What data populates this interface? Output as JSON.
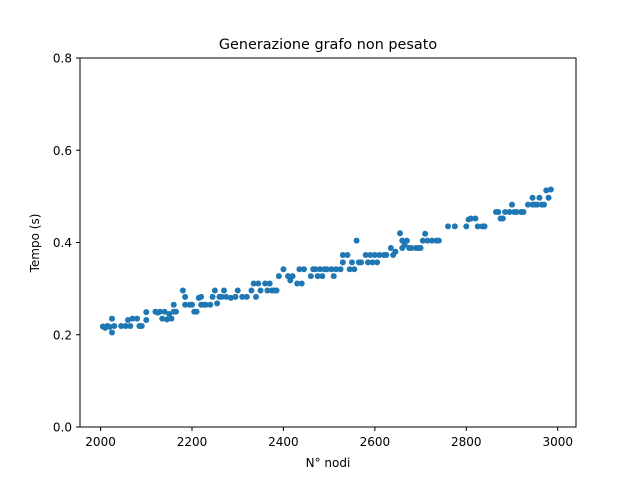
{
  "chart_data": {
    "type": "scatter",
    "title": "Generazione grafo non pesato",
    "xlabel": "N° nodi",
    "ylabel": "Tempo (s)",
    "xlim": [
      1955,
      3040
    ],
    "ylim": [
      0,
      0.8
    ],
    "x_ticks": [
      2000,
      2200,
      2400,
      2600,
      2800,
      3000
    ],
    "y_ticks": [
      0.0,
      0.2,
      0.4,
      0.6,
      0.8
    ],
    "x_tick_labels": [
      "2000",
      "2200",
      "2400",
      "2600",
      "2800",
      "3000"
    ],
    "y_tick_labels": [
      "0.0",
      "0.2",
      "0.4",
      "0.6",
      "0.8"
    ],
    "grid": false,
    "marker_color": "#1f77b4",
    "series": [
      {
        "points": [
          [
            2005,
            0.218
          ],
          [
            2010,
            0.215
          ],
          [
            2015,
            0.219
          ],
          [
            2020,
            0.217
          ],
          [
            2025,
            0.235
          ],
          [
            2025,
            0.205
          ],
          [
            2030,
            0.219
          ],
          [
            2045,
            0.219
          ],
          [
            2055,
            0.219
          ],
          [
            2060,
            0.232
          ],
          [
            2065,
            0.219
          ],
          [
            2070,
            0.235
          ],
          [
            2080,
            0.235
          ],
          [
            2085,
            0.219
          ],
          [
            2090,
            0.219
          ],
          [
            2100,
            0.232
          ],
          [
            2100,
            0.249
          ],
          [
            2120,
            0.25
          ],
          [
            2125,
            0.248
          ],
          [
            2130,
            0.25
          ],
          [
            2135,
            0.235
          ],
          [
            2140,
            0.25
          ],
          [
            2145,
            0.233
          ],
          [
            2150,
            0.245
          ],
          [
            2155,
            0.235
          ],
          [
            2160,
            0.25
          ],
          [
            2160,
            0.265
          ],
          [
            2165,
            0.25
          ],
          [
            2180,
            0.296
          ],
          [
            2185,
            0.282
          ],
          [
            2185,
            0.265
          ],
          [
            2195,
            0.265
          ],
          [
            2200,
            0.265
          ],
          [
            2205,
            0.25
          ],
          [
            2210,
            0.25
          ],
          [
            2215,
            0.28
          ],
          [
            2220,
            0.282
          ],
          [
            2220,
            0.265
          ],
          [
            2225,
            0.265
          ],
          [
            2230,
            0.265
          ],
          [
            2240,
            0.265
          ],
          [
            2245,
            0.282
          ],
          [
            2250,
            0.296
          ],
          [
            2255,
            0.268
          ],
          [
            2260,
            0.282
          ],
          [
            2265,
            0.282
          ],
          [
            2270,
            0.296
          ],
          [
            2275,
            0.282
          ],
          [
            2285,
            0.28
          ],
          [
            2295,
            0.282
          ],
          [
            2300,
            0.296
          ],
          [
            2310,
            0.282
          ],
          [
            2320,
            0.282
          ],
          [
            2330,
            0.296
          ],
          [
            2335,
            0.311
          ],
          [
            2340,
            0.282
          ],
          [
            2345,
            0.311
          ],
          [
            2350,
            0.296
          ],
          [
            2360,
            0.311
          ],
          [
            2365,
            0.296
          ],
          [
            2370,
            0.311
          ],
          [
            2375,
            0.296
          ],
          [
            2380,
            0.296
          ],
          [
            2385,
            0.296
          ],
          [
            2390,
            0.327
          ],
          [
            2400,
            0.342
          ],
          [
            2410,
            0.327
          ],
          [
            2415,
            0.318
          ],
          [
            2420,
            0.327
          ],
          [
            2430,
            0.311
          ],
          [
            2435,
            0.342
          ],
          [
            2440,
            0.311
          ],
          [
            2445,
            0.342
          ],
          [
            2460,
            0.327
          ],
          [
            2465,
            0.342
          ],
          [
            2470,
            0.342
          ],
          [
            2475,
            0.327
          ],
          [
            2480,
            0.342
          ],
          [
            2485,
            0.327
          ],
          [
            2490,
            0.342
          ],
          [
            2495,
            0.342
          ],
          [
            2505,
            0.342
          ],
          [
            2510,
            0.327
          ],
          [
            2515,
            0.342
          ],
          [
            2525,
            0.342
          ],
          [
            2530,
            0.357
          ],
          [
            2530,
            0.373
          ],
          [
            2540,
            0.373
          ],
          [
            2545,
            0.342
          ],
          [
            2550,
            0.357
          ],
          [
            2555,
            0.342
          ],
          [
            2560,
            0.404
          ],
          [
            2565,
            0.357
          ],
          [
            2570,
            0.357
          ],
          [
            2580,
            0.373
          ],
          [
            2585,
            0.357
          ],
          [
            2590,
            0.373
          ],
          [
            2595,
            0.357
          ],
          [
            2600,
            0.373
          ],
          [
            2605,
            0.357
          ],
          [
            2610,
            0.373
          ],
          [
            2620,
            0.373
          ],
          [
            2625,
            0.373
          ],
          [
            2635,
            0.388
          ],
          [
            2640,
            0.373
          ],
          [
            2645,
            0.38
          ],
          [
            2655,
            0.42
          ],
          [
            2660,
            0.388
          ],
          [
            2660,
            0.404
          ],
          [
            2665,
            0.395
          ],
          [
            2670,
            0.404
          ],
          [
            2675,
            0.388
          ],
          [
            2680,
            0.388
          ],
          [
            2690,
            0.388
          ],
          [
            2695,
            0.388
          ],
          [
            2700,
            0.388
          ],
          [
            2705,
            0.404
          ],
          [
            2710,
            0.419
          ],
          [
            2715,
            0.404
          ],
          [
            2725,
            0.404
          ],
          [
            2735,
            0.404
          ],
          [
            2740,
            0.404
          ],
          [
            2760,
            0.435
          ],
          [
            2775,
            0.435
          ],
          [
            2800,
            0.435
          ],
          [
            2805,
            0.45
          ],
          [
            2810,
            0.452
          ],
          [
            2820,
            0.452
          ],
          [
            2825,
            0.435
          ],
          [
            2835,
            0.435
          ],
          [
            2840,
            0.435
          ],
          [
            2865,
            0.466
          ],
          [
            2870,
            0.466
          ],
          [
            2875,
            0.452
          ],
          [
            2880,
            0.452
          ],
          [
            2885,
            0.466
          ],
          [
            2895,
            0.466
          ],
          [
            2900,
            0.482
          ],
          [
            2905,
            0.466
          ],
          [
            2910,
            0.466
          ],
          [
            2920,
            0.466
          ],
          [
            2925,
            0.466
          ],
          [
            2935,
            0.482
          ],
          [
            2945,
            0.482
          ],
          [
            2945,
            0.497
          ],
          [
            2950,
            0.482
          ],
          [
            2955,
            0.482
          ],
          [
            2960,
            0.497
          ],
          [
            2965,
            0.482
          ],
          [
            2970,
            0.482
          ],
          [
            2975,
            0.513
          ],
          [
            2980,
            0.497
          ],
          [
            2985,
            0.515
          ]
        ]
      }
    ]
  }
}
